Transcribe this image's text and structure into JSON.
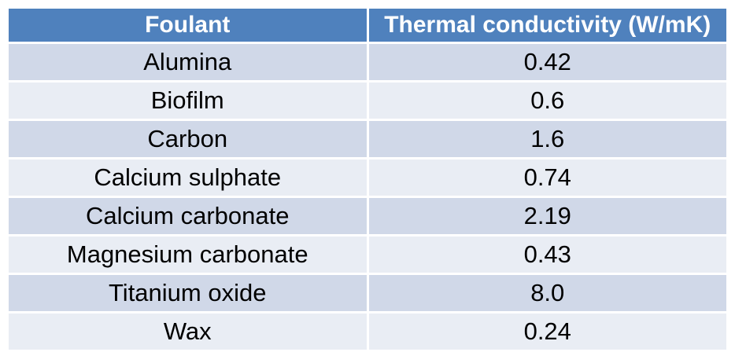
{
  "colors": {
    "page-bg": "#FFFFFF",
    "header-bg": "#4F81BD",
    "header-text": "#FFFFFF",
    "row-odd-bg": "#D0D8E8",
    "row-even-bg": "#E9EDF4",
    "body-text": "#000000",
    "grid-line": "#FFFFFF"
  },
  "table": {
    "columns": [
      "Foulant",
      "Thermal conductivity (W/mK)"
    ],
    "rows": [
      [
        "Alumina",
        "0.42"
      ],
      [
        "Biofilm",
        "0.6"
      ],
      [
        "Carbon",
        "1.6"
      ],
      [
        "Calcium sulphate",
        "0.74"
      ],
      [
        "Calcium carbonate",
        "2.19"
      ],
      [
        "Magnesium carbonate",
        "0.43"
      ],
      [
        "Titanium oxide",
        "8.0"
      ],
      [
        "Wax",
        "0.24"
      ]
    ]
  },
  "chart_data": {
    "type": "table",
    "columns": [
      "Foulant",
      "Thermal conductivity (W/mK)"
    ],
    "categories": [
      "Alumina",
      "Biofilm",
      "Carbon",
      "Calcium sulphate",
      "Calcium carbonate",
      "Magnesium carbonate",
      "Titanium oxide",
      "Wax"
    ],
    "values": [
      0.42,
      0.6,
      1.6,
      0.74,
      2.19,
      0.43,
      8.0,
      0.24
    ],
    "ylabel": "Thermal conductivity (W/mK)",
    "layout": {
      "banded_rows": true,
      "header_style": "solid-accent",
      "column_alignment": [
        "center",
        "center"
      ]
    }
  }
}
